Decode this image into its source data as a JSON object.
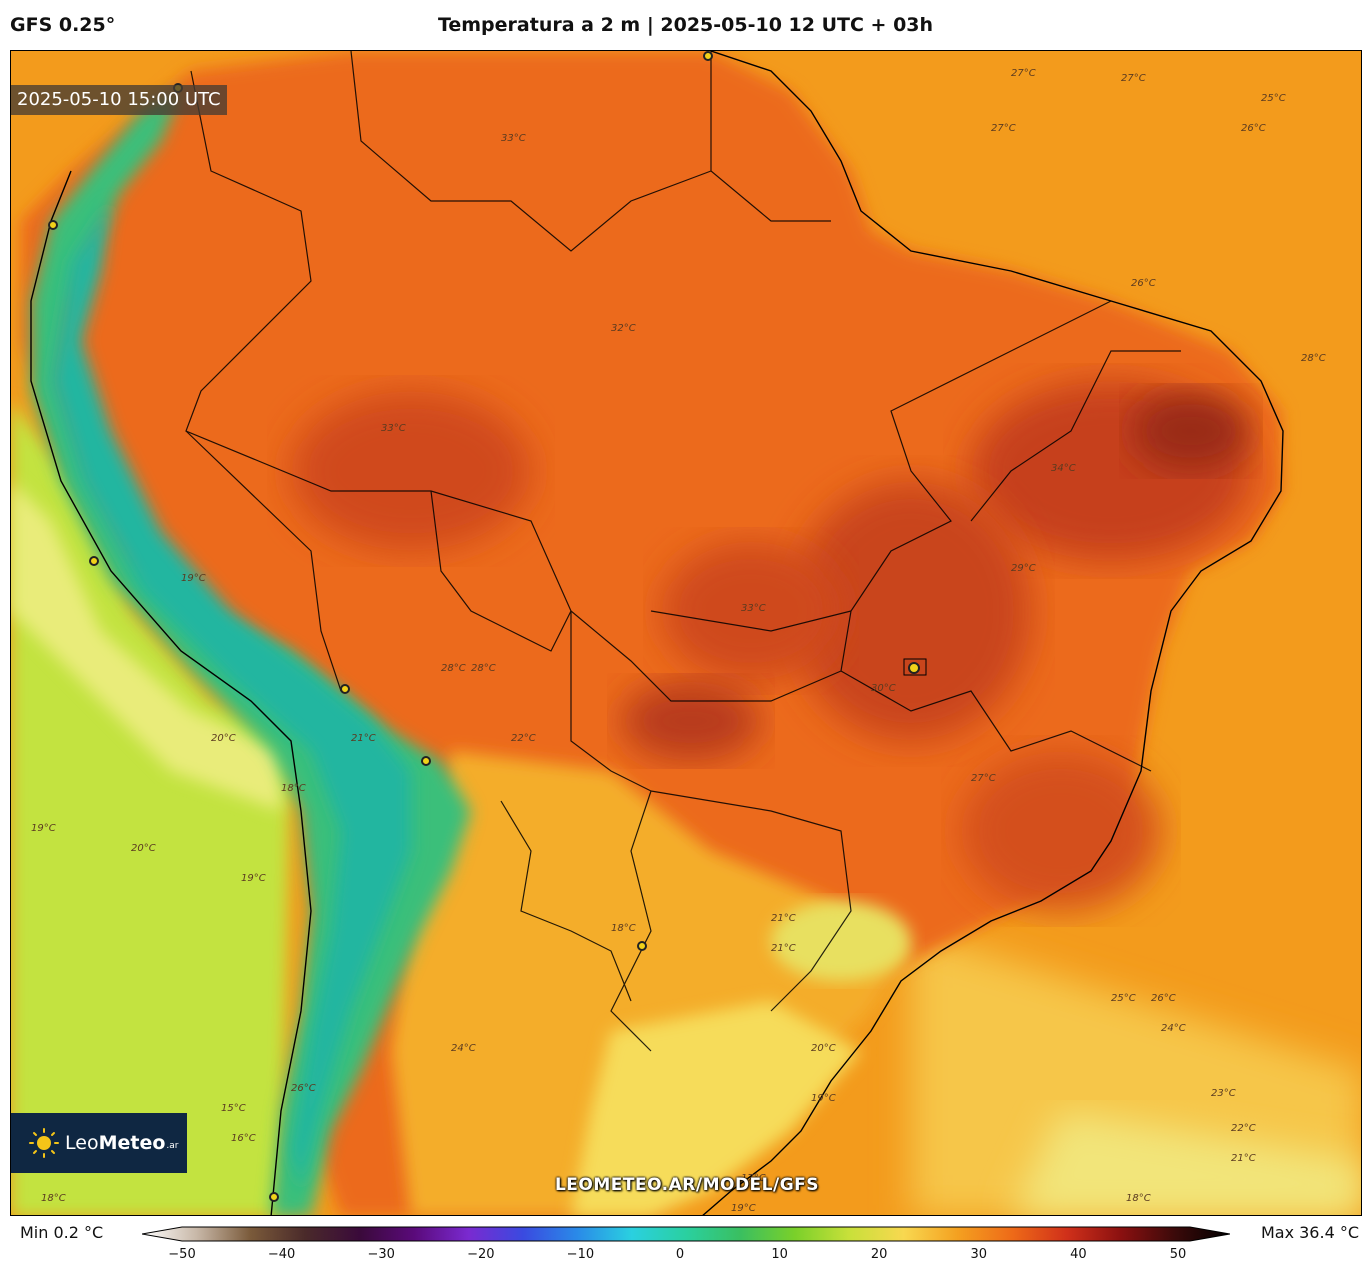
{
  "header": {
    "model": "GFS 0.25°",
    "title": "Temperatura a 2 m | 2025-05-10 12 UTC + 03h"
  },
  "map": {
    "valid_time": "2025-05-10 15:00 UTC",
    "watermark": "LEOMETEO.AR/MODEL/GFS",
    "logo": {
      "name_light": "Leo",
      "name_bold": "Meteo",
      "tld": ".ar",
      "icon": "sun-icon"
    },
    "contour_labels": [
      "27°C",
      "27°C",
      "25°C",
      "26°C",
      "27°C",
      "26°C",
      "28°C",
      "33°C",
      "32°C",
      "33°C",
      "34°C",
      "33°C",
      "30°C",
      "29°C",
      "27°C",
      "28°C",
      "20°C",
      "21°C",
      "22°C",
      "18°C",
      "19°C",
      "20°C",
      "19°C",
      "18°C",
      "15°C",
      "21°C",
      "25°C",
      "26°C",
      "24°C",
      "23°C",
      "22°C",
      "21°C",
      "20°C",
      "19°C",
      "18°C",
      "19°C",
      "24°C",
      "26°C",
      "21°C",
      "16°C",
      "18°C",
      "28°C",
      "19°C",
      "17°C"
    ],
    "colors": {
      "ocean_warm": "#f39b1c",
      "land_hot": "#e2531a",
      "land_very_hot": "#b8321c",
      "andes_cool": "#3bbf7a",
      "andes_cold": "#20b0a0",
      "pacific": "#c3e340",
      "south_cool": "#f2e56a"
    }
  },
  "colorbar": {
    "min_label": "Min 0.2 °C",
    "max_label": "Max 36.4 °C",
    "ticks": [
      "−50",
      "−40",
      "−30",
      "−20",
      "−10",
      "0",
      "10",
      "20",
      "30",
      "40",
      "50"
    ],
    "range": [
      -50,
      50
    ],
    "stops": [
      "#ffffff",
      "#c8b8a8",
      "#7a5a3a",
      "#4a2a2a",
      "#3a0a3a",
      "#5a0a7a",
      "#7a2ad0",
      "#3a4ae0",
      "#2a8ae8",
      "#2ad0e0",
      "#2ad0a0",
      "#3abf60",
      "#7ad02a",
      "#c8e03a",
      "#f8d850",
      "#f4a020",
      "#ee6a18",
      "#d0301a",
      "#8a1010",
      "#3a0a0a",
      "#000000"
    ]
  }
}
